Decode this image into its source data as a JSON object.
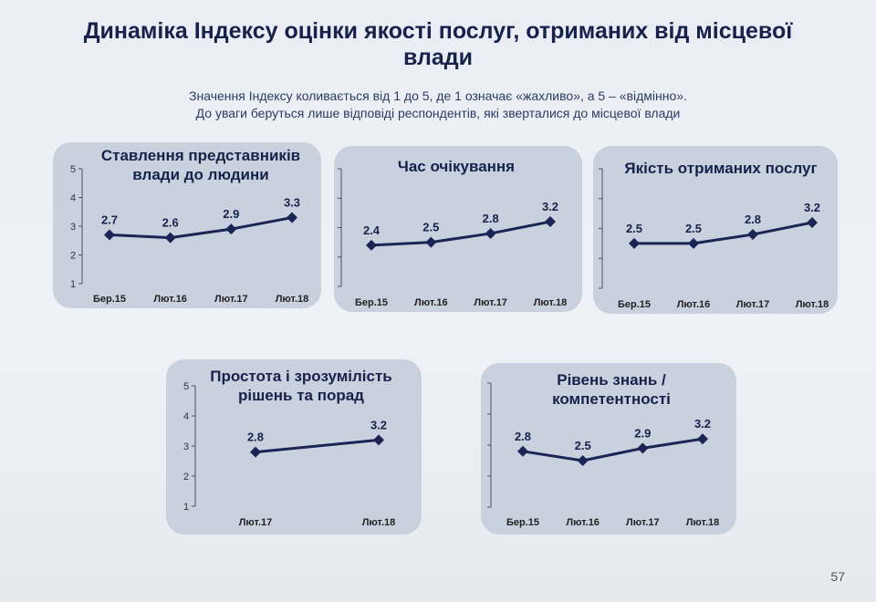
{
  "page": {
    "title": "Динаміка Індексу оцінки якості послуг, отриманих від місцевої влади",
    "subtitle_line1": "Значення Індексу коливається від 1 до 5, де 1 означає «жахливо», а 5 – «відмінно».",
    "subtitle_line2": "До уваги беруться лише відповіді респондентів, які зверталися до місцевої влади",
    "page_number": "57"
  },
  "colors": {
    "panel": "#c9d1de",
    "line": "#1a2555",
    "axis": "#4a5066",
    "text": "#16224a"
  },
  "chart_data": [
    {
      "type": "line",
      "title": "Ставлення представників влади до людини",
      "categories": [
        "Бер.15",
        "Лют.16",
        "Лют.17",
        "Лют.18"
      ],
      "values": [
        2.7,
        2.6,
        2.9,
        3.3
      ],
      "value_labels": [
        "2.7",
        "2.6",
        "2.9",
        "3.3"
      ],
      "ylim": [
        1,
        5
      ],
      "yticks": [
        "1",
        "2",
        "3",
        "4",
        "5"
      ],
      "grid": false
    },
    {
      "type": "line",
      "title": "Час очікування",
      "categories": [
        "Бер.15",
        "Лют.16",
        "Лют.17",
        "Лют.18"
      ],
      "values": [
        2.4,
        2.5,
        2.8,
        3.2
      ],
      "value_labels": [
        "2.4",
        "2.5",
        "2.8",
        "3.2"
      ],
      "ylim": [
        1,
        5
      ],
      "grid": false
    },
    {
      "type": "line",
      "title": "Якість отриманих послуг",
      "categories": [
        "Бер.15",
        "Лют.16",
        "Лют.17",
        "Лют.18"
      ],
      "values": [
        2.5,
        2.5,
        2.8,
        3.2
      ],
      "value_labels": [
        "2.5",
        "2.5",
        "2.8",
        "3.2"
      ],
      "ylim": [
        1,
        5
      ],
      "grid": false
    },
    {
      "type": "line",
      "title": "Простота і зрозумілість рішень та порад",
      "categories": [
        "Лют.17",
        "Лют.18"
      ],
      "values": [
        2.8,
        3.2
      ],
      "value_labels": [
        "2.8",
        "3.2"
      ],
      "ylim": [
        1,
        5
      ],
      "yticks": [
        "1",
        "2",
        "3",
        "4",
        "5"
      ],
      "grid": false
    },
    {
      "type": "line",
      "title": "Рівень знань / компетентності",
      "categories": [
        "Бер.15",
        "Лют.16",
        "Лют.17",
        "Лют.18"
      ],
      "values": [
        2.8,
        2.5,
        2.9,
        3.2
      ],
      "value_labels": [
        "2.8",
        "2.5",
        "2.9",
        "3.2"
      ],
      "ylim": [
        1,
        5
      ],
      "grid": false
    }
  ]
}
